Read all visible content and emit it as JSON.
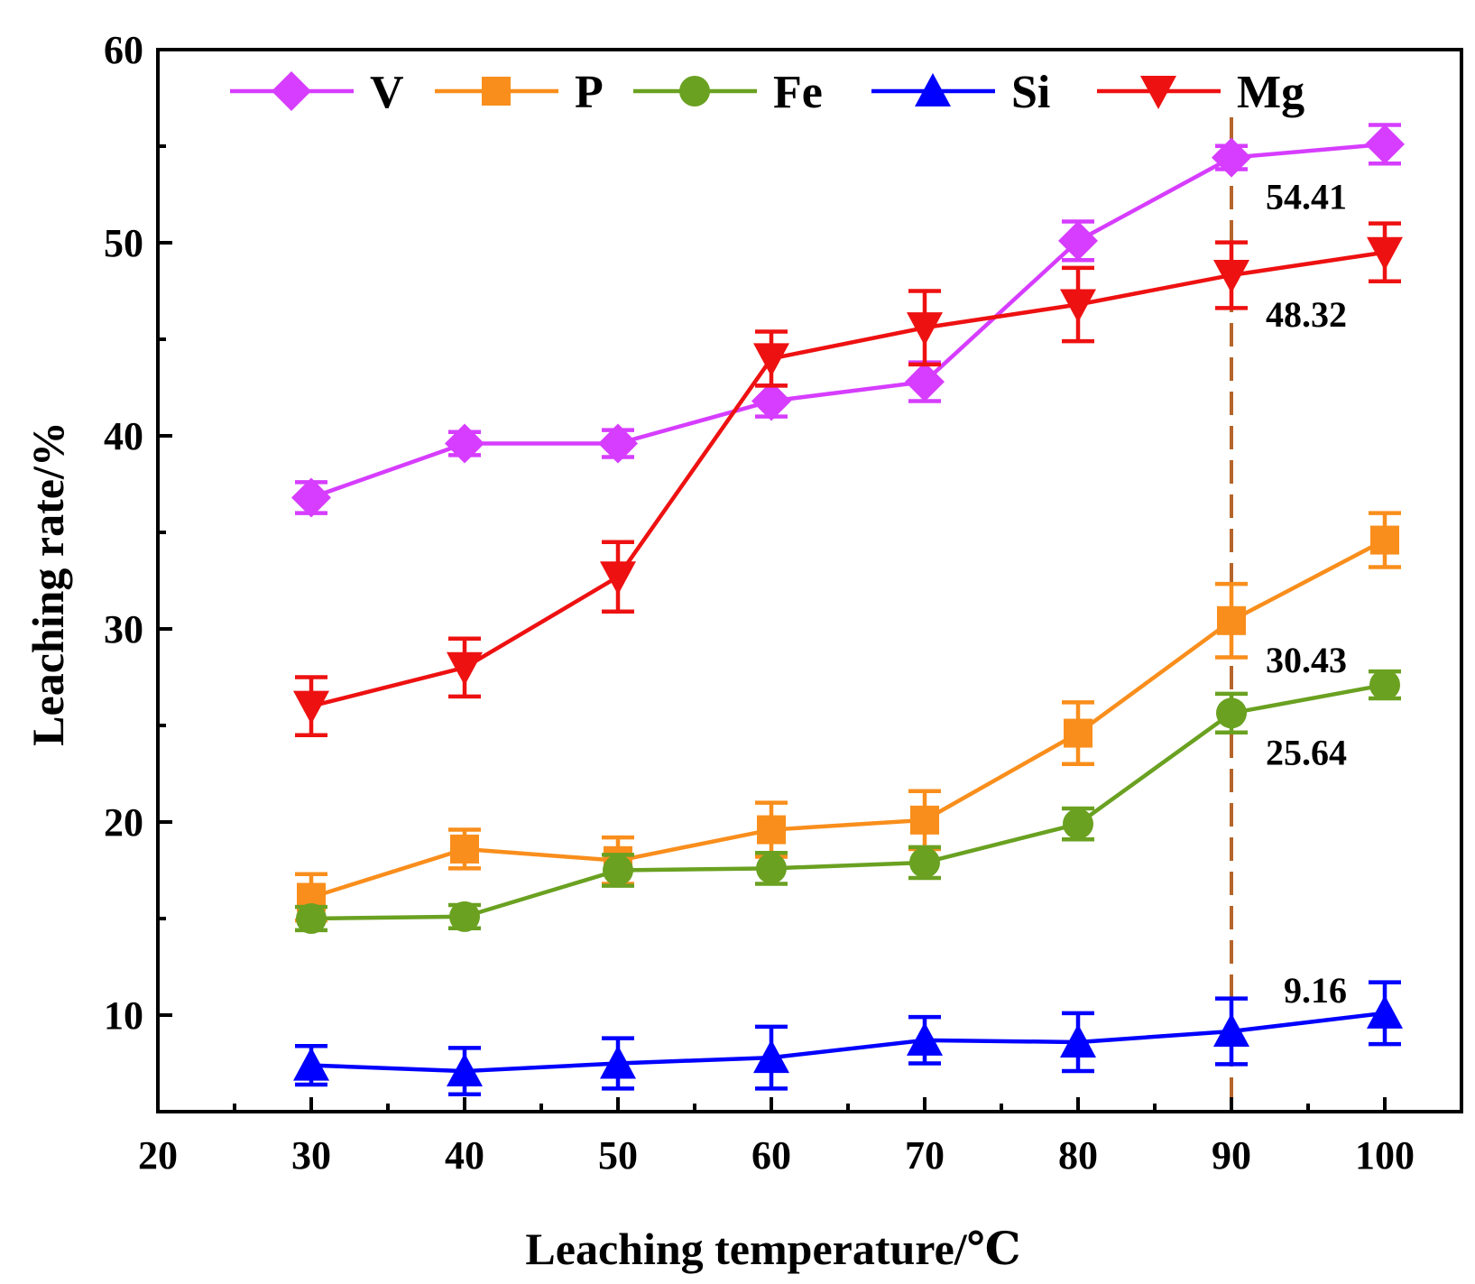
{
  "chart_data": {
    "type": "line",
    "xlabel": "Leaching temperature/℃",
    "ylabel": "Leaching rate/%",
    "xlim": [
      20,
      105
    ],
    "ylim": [
      5,
      60
    ],
    "x_ticks": [
      20,
      30,
      40,
      50,
      60,
      70,
      80,
      90,
      100
    ],
    "y_ticks": [
      10,
      20,
      30,
      40,
      50,
      60
    ],
    "x_minor_step": 5,
    "y_minor_step": 5,
    "legend_position": "top",
    "x": [
      30,
      40,
      50,
      60,
      70,
      80,
      90,
      100
    ],
    "series": [
      {
        "name": "V",
        "color": "#d63dff",
        "marker": "diamond",
        "values": [
          36.8,
          39.6,
          39.6,
          41.8,
          42.8,
          50.1,
          54.41,
          55.1
        ],
        "errors": [
          0.8,
          0.6,
          0.7,
          0.8,
          1.0,
          1.0,
          0.6,
          1.0
        ]
      },
      {
        "name": "P",
        "color": "#f98e1c",
        "marker": "square",
        "values": [
          16.1,
          18.6,
          18.0,
          19.6,
          20.1,
          24.6,
          30.43,
          34.6
        ],
        "errors": [
          1.2,
          1.0,
          1.2,
          1.4,
          1.5,
          1.6,
          1.9,
          1.4
        ]
      },
      {
        "name": "Fe",
        "color": "#6aa121",
        "marker": "circle",
        "values": [
          15.0,
          15.1,
          17.5,
          17.6,
          17.9,
          19.9,
          25.64,
          27.1
        ],
        "errors": [
          0.6,
          0.6,
          0.8,
          0.8,
          0.8,
          0.8,
          1.0,
          0.7
        ]
      },
      {
        "name": "Si",
        "color": "#0000ff",
        "marker": "triangle-up",
        "values": [
          7.4,
          7.1,
          7.5,
          7.8,
          8.7,
          8.6,
          9.16,
          10.1
        ],
        "errors": [
          1.0,
          1.2,
          1.3,
          1.6,
          1.2,
          1.5,
          1.7,
          1.6
        ]
      },
      {
        "name": "Mg",
        "color": "#ee1111",
        "marker": "triangle-down",
        "values": [
          26.0,
          28.0,
          32.7,
          44.0,
          45.6,
          46.8,
          48.32,
          49.5
        ],
        "errors": [
          1.5,
          1.5,
          1.8,
          1.4,
          1.9,
          1.9,
          1.7,
          1.5
        ]
      }
    ],
    "reference_line": {
      "x": 90,
      "color": "#b5652a",
      "style": "dashed"
    },
    "annotations": [
      {
        "text": "54.41",
        "series": "V",
        "x": 90
      },
      {
        "text": "48.32",
        "series": "Mg",
        "x": 90
      },
      {
        "text": "30.43",
        "series": "P",
        "x": 90
      },
      {
        "text": "25.64",
        "series": "Fe",
        "x": 90
      },
      {
        "text": "9.16",
        "series": "Si",
        "x": 90
      }
    ]
  }
}
